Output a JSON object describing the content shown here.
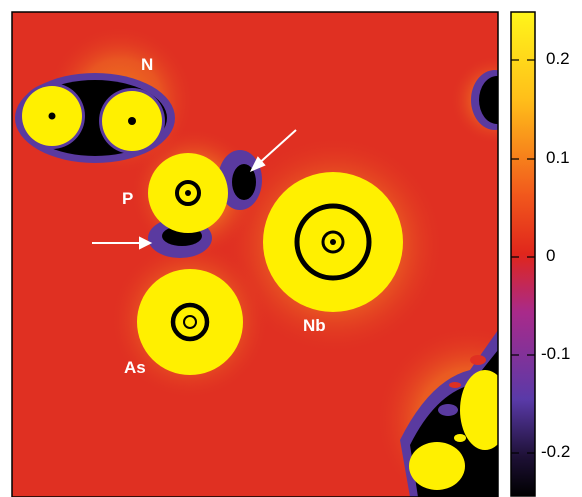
{
  "figure": {
    "atom_labels": {
      "n": "N",
      "p": "P",
      "nb": "Nb",
      "as": "As"
    },
    "colorbar": {
      "tick_labels": [
        "0.2",
        "0.1",
        "0",
        "-0.1",
        "-0.2"
      ],
      "tick_values": [
        0.2,
        0.1,
        0,
        -0.1,
        -0.2
      ],
      "range": [
        -0.25,
        0.25
      ],
      "colors": {
        "low": "#000000",
        "mid_low": "#6a3fb0",
        "zero": "#e0261c",
        "mid_high": "#ff8c1a",
        "high": "#ffe70a"
      }
    },
    "map_colors": {
      "background": "#e03022",
      "halo": "#f39a28",
      "atom": "#fff000",
      "depletion": "#5a3aa0",
      "core": "#000000"
    }
  }
}
